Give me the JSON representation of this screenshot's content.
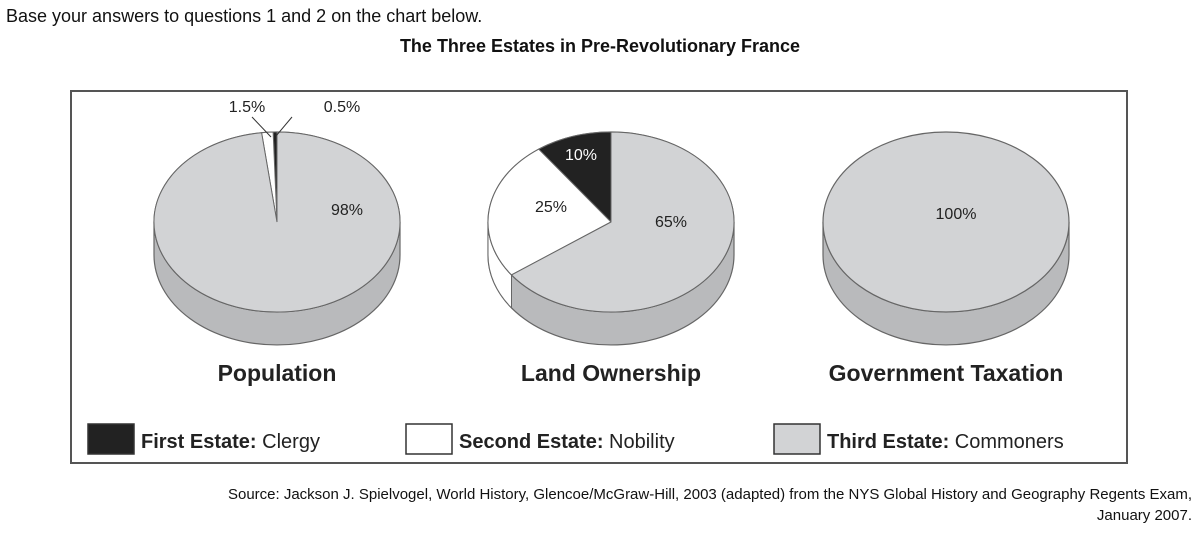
{
  "intro": "Base your answers to questions 1 and 2 on the chart below.",
  "chart_data": {
    "type": "pie",
    "title": "The Three Estates in Pre-Revolutionary France",
    "legend": {
      "placement": "bottom",
      "entries": [
        {
          "bold": "First Estate:",
          "label": "Clergy",
          "color": "#222222"
        },
        {
          "bold": "Second Estate:",
          "label": "Nobility",
          "color": "#ffffff"
        },
        {
          "bold": "Third Estate:",
          "label": "Commoners",
          "color": "#d2d3d5"
        }
      ]
    },
    "pies": [
      {
        "name": "Population",
        "values": [
          0.5,
          1.5,
          98
        ],
        "labels": [
          "0.5%",
          "1.5%",
          "98%"
        ]
      },
      {
        "name": "Land Ownership",
        "values": [
          10,
          25,
          65
        ],
        "labels": [
          "10%",
          "25%",
          "65%"
        ]
      },
      {
        "name": "Government Taxation",
        "values": [
          0,
          0,
          100
        ],
        "labels": [
          "",
          "",
          "100%"
        ]
      }
    ]
  },
  "source": [
    "Source: Jackson J. Spielvogel, World History, Glencoe/McGraw-Hill, 2003 (adapted) from the NYS Global History and Geography Regents Exam,",
    "January 2007."
  ]
}
